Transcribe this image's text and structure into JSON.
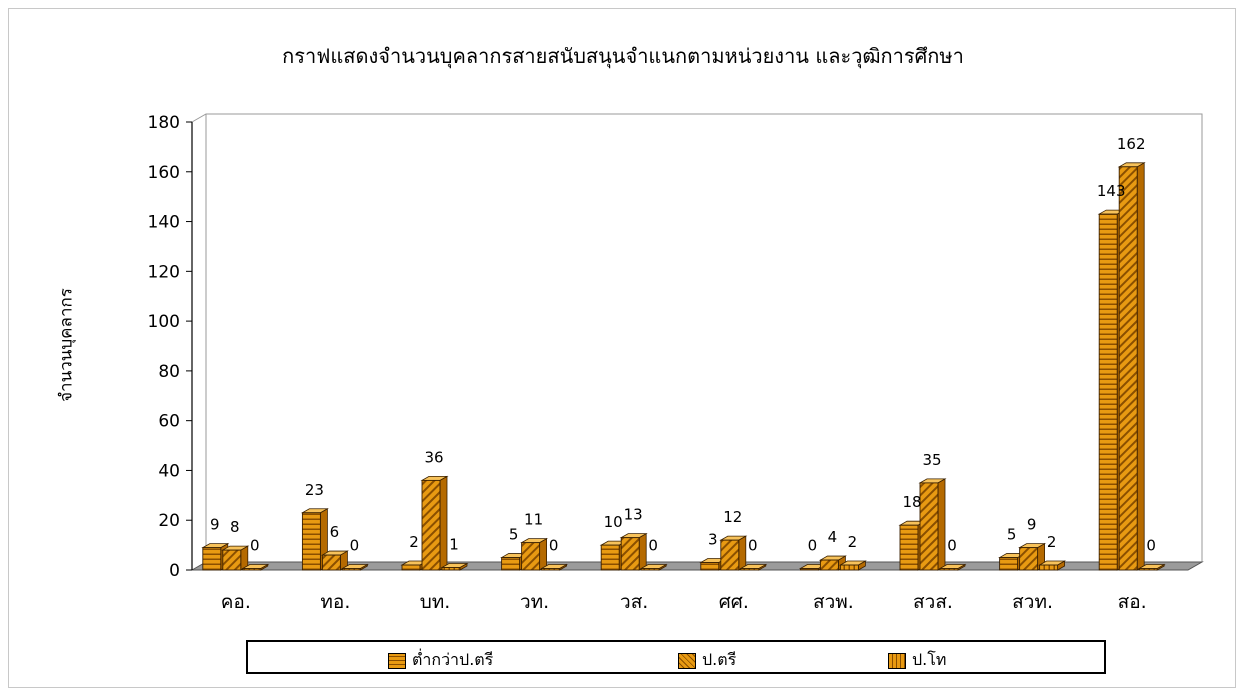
{
  "chart_data": {
    "type": "bar",
    "title": "กราฟแสดงจำนวนบุคลากรสายสนับสนุนจำแนกตามหน่วยงาน และวุฒิการศึกษา",
    "ylabel": "จำนวนบุคลากร",
    "xlabel": "",
    "ylim": [
      0,
      180
    ],
    "yticks": [
      0,
      20,
      40,
      60,
      80,
      100,
      120,
      140,
      160,
      180
    ],
    "categories": [
      "คอ.",
      "ทอ.",
      "บท.",
      "วท.",
      "วส.",
      "ศศ.",
      "สวพ.",
      "สวส.",
      "สวท.",
      "สอ."
    ],
    "series": [
      {
        "name": "ต่ำกว่าป.ตรี",
        "values": [
          9,
          23,
          2,
          5,
          10,
          3,
          0,
          18,
          5,
          143
        ]
      },
      {
        "name": "ป.ตรี",
        "values": [
          8,
          6,
          36,
          11,
          13,
          12,
          4,
          35,
          9,
          162
        ]
      },
      {
        "name": "ป.โท",
        "values": [
          0,
          0,
          1,
          0,
          0,
          0,
          2,
          0,
          2,
          0
        ]
      }
    ],
    "grid": false,
    "legend_position": "bottom",
    "style": "3d-column"
  },
  "colors": {
    "bar_main": "#e89a12",
    "bar_side": "#b56a00",
    "bar_top": "#f7c25a",
    "stripe": "#6b3a00"
  }
}
